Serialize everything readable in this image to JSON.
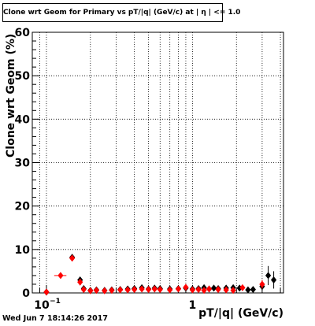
{
  "chart_data": {
    "type": "scatter",
    "title": "Clone wrt Geom for Primary vs pT/|q| (GeV/c) at | η | <= 1.0",
    "xlabel": "pT/|q| (GeV/c)",
    "ylabel": "Clone wrt Geom (%)",
    "x_scale": "log",
    "xlim": [
      0.08,
      4.2
    ],
    "ylim": [
      0,
      60
    ],
    "y_ticks": [
      0,
      10,
      20,
      30,
      40,
      50,
      60
    ],
    "x_tick_labels": [
      {
        "value": 0.1,
        "label": "10",
        "exponent": "−1"
      },
      {
        "value": 1,
        "label": "1",
        "exponent": ""
      }
    ],
    "grid": true,
    "series": [
      {
        "color": "#000000",
        "marker": "diamond",
        "points": [
          {
            "x": 0.1,
            "y": 0.2,
            "yerr": 0.2
          },
          {
            "x": 0.15,
            "y": 8.2,
            "yerr": 0.6
          },
          {
            "x": 0.17,
            "y": 3.0,
            "yerr": 0.5
          },
          {
            "x": 0.18,
            "y": 1.0,
            "yerr": 0.3
          },
          {
            "x": 0.2,
            "y": 0.6,
            "yerr": 0.2
          },
          {
            "x": 0.22,
            "y": 0.7,
            "yerr": 0.2
          },
          {
            "x": 0.25,
            "y": 0.6,
            "yerr": 0.2
          },
          {
            "x": 0.28,
            "y": 0.7,
            "yerr": 0.2
          },
          {
            "x": 0.32,
            "y": 0.8,
            "yerr": 0.2
          },
          {
            "x": 0.36,
            "y": 0.9,
            "yerr": 0.2
          },
          {
            "x": 0.4,
            "y": 1.0,
            "yerr": 0.2
          },
          {
            "x": 0.45,
            "y": 1.2,
            "yerr": 0.2
          },
          {
            "x": 0.5,
            "y": 0.9,
            "yerr": 0.2
          },
          {
            "x": 0.55,
            "y": 1.1,
            "yerr": 0.2
          },
          {
            "x": 0.6,
            "y": 1.0,
            "yerr": 0.2
          },
          {
            "x": 0.7,
            "y": 0.9,
            "yerr": 0.2
          },
          {
            "x": 0.8,
            "y": 1.0,
            "yerr": 0.3
          },
          {
            "x": 0.9,
            "y": 1.1,
            "yerr": 0.3
          },
          {
            "x": 1.0,
            "y": 0.9,
            "yerr": 0.3
          },
          {
            "x": 1.1,
            "y": 1.0,
            "yerr": 0.3
          },
          {
            "x": 1.2,
            "y": 1.2,
            "yerr": 0.3
          },
          {
            "x": 1.3,
            "y": 0.9,
            "yerr": 0.3
          },
          {
            "x": 1.4,
            "y": 1.1,
            "yerr": 0.3
          },
          {
            "x": 1.5,
            "y": 1.0,
            "yerr": 0.3
          },
          {
            "x": 1.7,
            "y": 1.1,
            "yerr": 0.4
          },
          {
            "x": 1.9,
            "y": 1.2,
            "yerr": 0.4
          },
          {
            "x": 2.1,
            "y": 1.1,
            "yerr": 0.5
          },
          {
            "x": 2.4,
            "y": 0.7,
            "yerr": 0.5
          },
          {
            "x": 2.6,
            "y": 0.8,
            "yerr": 0.5
          },
          {
            "x": 3.0,
            "y": 1.5,
            "yerr": 0.9
          },
          {
            "x": 3.3,
            "y": 4.0,
            "yerr": 2.2
          },
          {
            "x": 3.6,
            "y": 3.0,
            "yerr": 2.0
          }
        ]
      },
      {
        "color": "#ff0000",
        "marker": "diamond",
        "points": [
          {
            "x": 0.1,
            "y": 0.2,
            "yerr": 0.2
          },
          {
            "x": 0.125,
            "y": 4.0,
            "yerr": 0.4,
            "xerr": 0.012
          },
          {
            "x": 0.15,
            "y": 8.0,
            "yerr": 0.6
          },
          {
            "x": 0.17,
            "y": 2.5,
            "yerr": 0.4
          },
          {
            "x": 0.18,
            "y": 0.8,
            "yerr": 0.3
          },
          {
            "x": 0.2,
            "y": 0.5,
            "yerr": 0.2
          },
          {
            "x": 0.22,
            "y": 0.6,
            "yerr": 0.2
          },
          {
            "x": 0.25,
            "y": 0.5,
            "yerr": 0.2
          },
          {
            "x": 0.28,
            "y": 0.6,
            "yerr": 0.2
          },
          {
            "x": 0.32,
            "y": 0.7,
            "yerr": 0.2
          },
          {
            "x": 0.36,
            "y": 0.7,
            "yerr": 0.2
          },
          {
            "x": 0.4,
            "y": 0.8,
            "yerr": 0.2
          },
          {
            "x": 0.45,
            "y": 0.9,
            "yerr": 0.2
          },
          {
            "x": 0.5,
            "y": 0.8,
            "yerr": 0.2
          },
          {
            "x": 0.55,
            "y": 0.9,
            "yerr": 0.2
          },
          {
            "x": 0.6,
            "y": 0.8,
            "yerr": 0.2
          },
          {
            "x": 0.7,
            "y": 0.7,
            "yerr": 0.2
          },
          {
            "x": 0.8,
            "y": 0.9,
            "yerr": 0.3
          },
          {
            "x": 0.9,
            "y": 1.3,
            "yerr": 0.3
          },
          {
            "x": 1.0,
            "y": 0.7,
            "yerr": 0.3
          },
          {
            "x": 1.1,
            "y": 0.8,
            "yerr": 0.3
          },
          {
            "x": 1.2,
            "y": 0.6,
            "yerr": 0.3
          },
          {
            "x": 1.3,
            "y": 0.9,
            "yerr": 0.3
          },
          {
            "x": 1.5,
            "y": 0.8,
            "yerr": 0.3
          },
          {
            "x": 1.7,
            "y": 0.7,
            "yerr": 0.4
          },
          {
            "x": 1.9,
            "y": 0.6,
            "yerr": 0.4
          },
          {
            "x": 2.2,
            "y": 1.2,
            "yerr": 0.5
          },
          {
            "x": 3.0,
            "y": 2.0,
            "yerr": 1.0
          }
        ]
      }
    ]
  },
  "footer": {
    "timestamp": "Wed Jun  7 18:14:26 2017"
  }
}
